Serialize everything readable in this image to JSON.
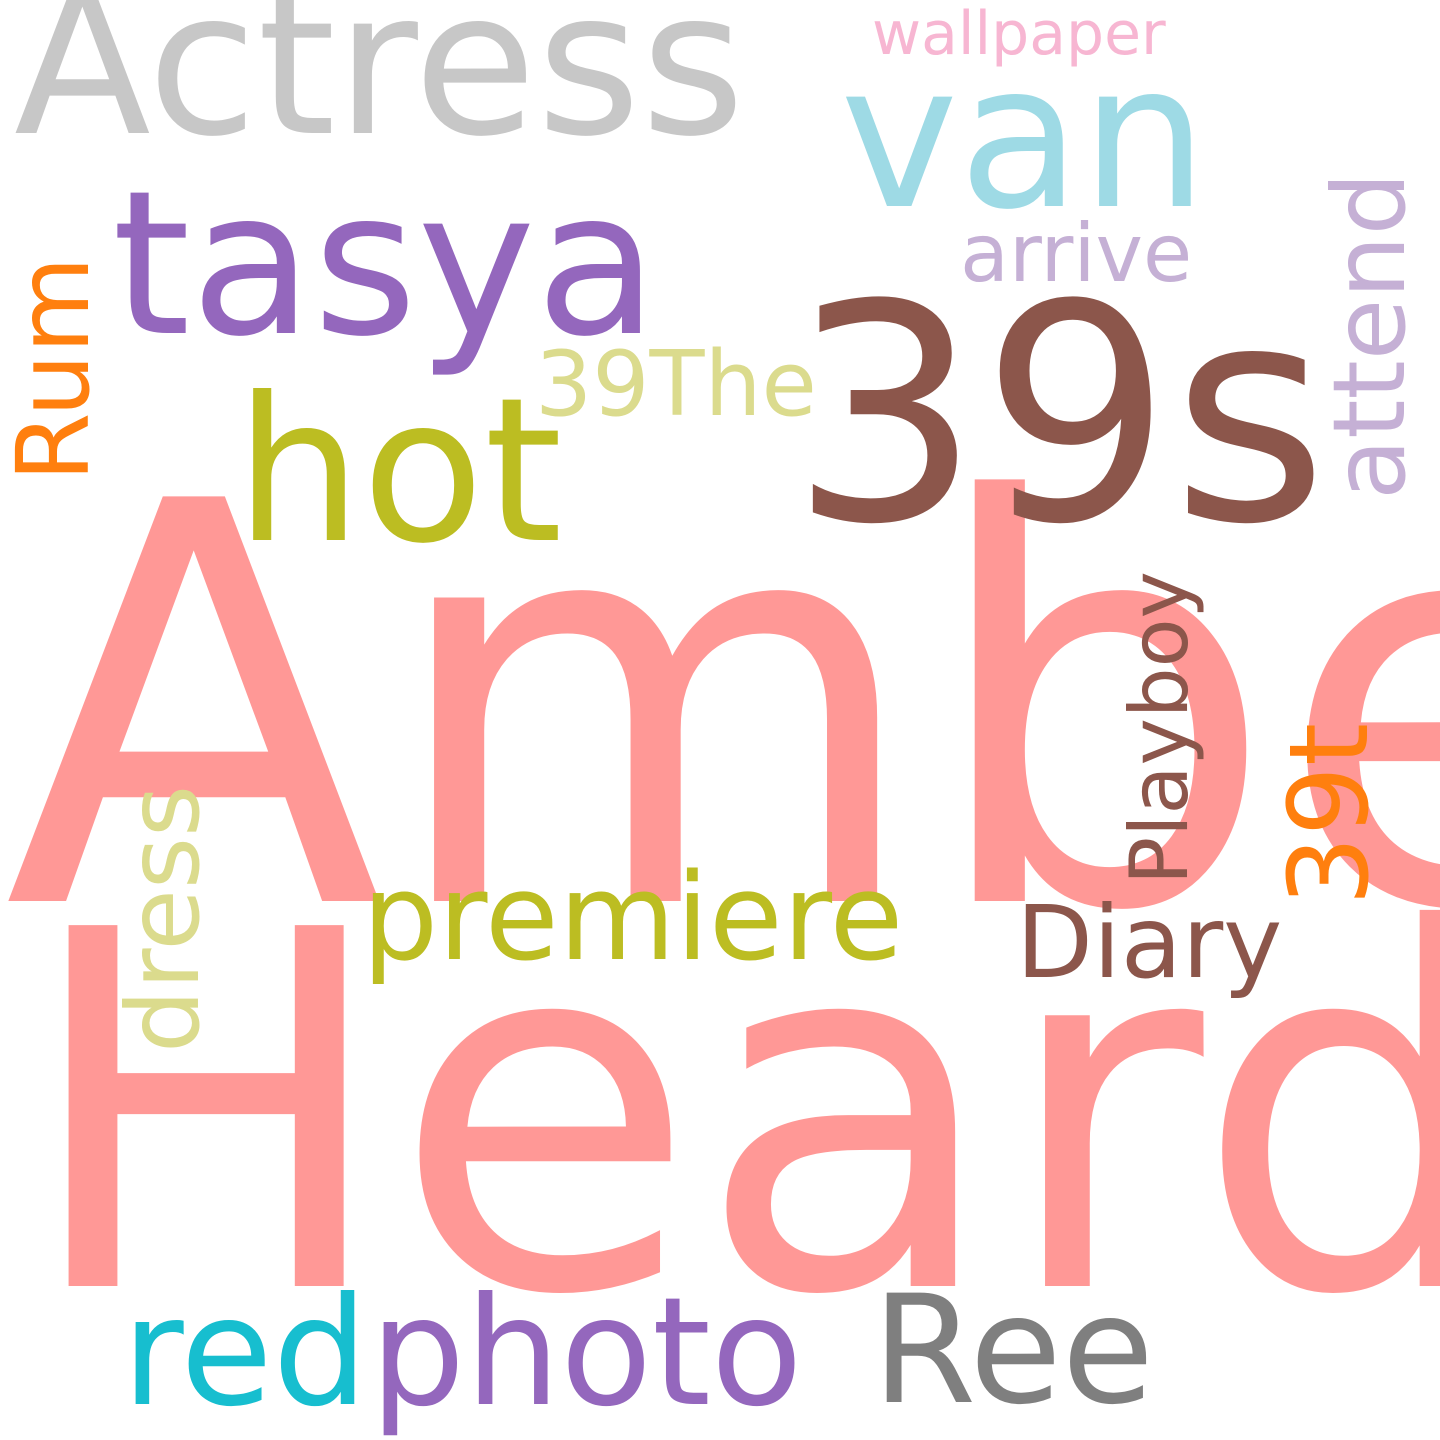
{
  "colors": {
    "background": "#ffffff",
    "salmon": "#ff9896",
    "brown": "#8c564b",
    "gray_light": "#c7c7c7",
    "cyan_light": "#9edae5",
    "purple": "#9467bd",
    "olive": "#bcbd22",
    "khaki": "#dbdb8d",
    "lavender": "#c5b0d5",
    "orange": "#ff7f0e",
    "pink": "#f7b6d2",
    "cyan": "#17becf",
    "gray": "#7f7f7f"
  },
  "words": {
    "amber": "Amber",
    "heard": "Heard",
    "w39s": "39s",
    "actress": "Actress",
    "van": "van",
    "tasya": "tasya",
    "hot": "hot",
    "wallpaper": "wallpaper",
    "arrive": "arrive",
    "attend": "attend",
    "rum": "Rum",
    "w39the": "39The",
    "premiere": "premiere",
    "diary": "Diary",
    "playboy": "Playboy",
    "w39t": "39t",
    "dress": "dress",
    "red": "red",
    "photo": "photo",
    "ree": "Ree"
  }
}
